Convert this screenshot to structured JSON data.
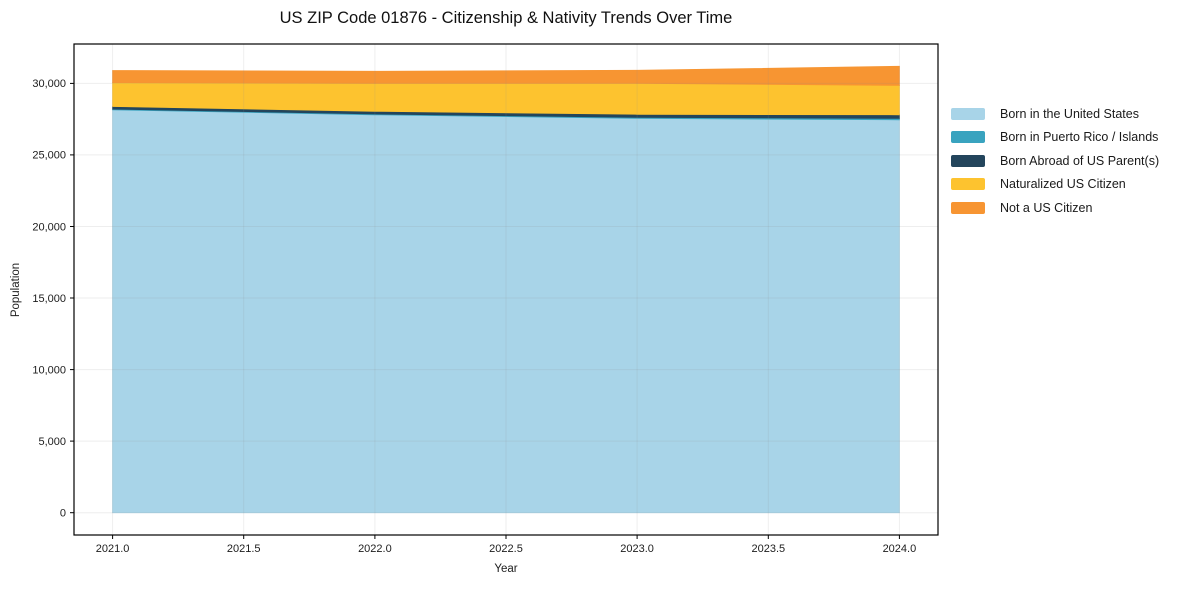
{
  "chart_data": {
    "type": "area",
    "stacked": true,
    "title": "US ZIP Code 01876 - Citizenship & Nativity Trends Over Time",
    "xlabel": "Year",
    "ylabel": "Population",
    "x": [
      2021,
      2022,
      2023,
      2024
    ],
    "series": [
      {
        "name": "Born in the United States",
        "color": "#a8d4e8",
        "values": [
          28150,
          27800,
          27550,
          27450
        ]
      },
      {
        "name": "Born in Puerto Rico / Islands",
        "color": "#39a3bf",
        "values": [
          50,
          60,
          70,
          100
        ]
      },
      {
        "name": "Born Abroad of US Parent(s)",
        "color": "#23455c",
        "values": [
          180,
          190,
          220,
          250
        ]
      },
      {
        "name": "Naturalized US Citizen",
        "color": "#fdc32f",
        "values": [
          1670,
          1950,
          2160,
          2060
        ]
      },
      {
        "name": "Not a US Citizen",
        "color": "#f79532",
        "values": [
          850,
          840,
          910,
          1330
        ]
      }
    ],
    "xticks": [
      2021.0,
      2021.5,
      2022.0,
      2022.5,
      2023.0,
      2023.5,
      2024.0
    ],
    "xtick_labels": [
      "2021.0",
      "2021.5",
      "2022.0",
      "2022.5",
      "2023.0",
      "2023.5",
      "2024.0"
    ],
    "yticks": [
      0,
      5000,
      10000,
      15000,
      20000,
      25000,
      30000
    ],
    "ytick_labels": [
      "0",
      "5,000",
      "10,000",
      "15,000",
      "20,000",
      "25,000",
      "30,000"
    ],
    "xlim": [
      2020.853,
      2024.147
    ],
    "ylim": [
      -1560,
      32750
    ],
    "grid": true,
    "legend_position": "right-outside",
    "colors": {
      "spine": "#000000",
      "grid": "#8a8a8a",
      "text": "#1c1c1c",
      "background": "#ffffff"
    }
  }
}
